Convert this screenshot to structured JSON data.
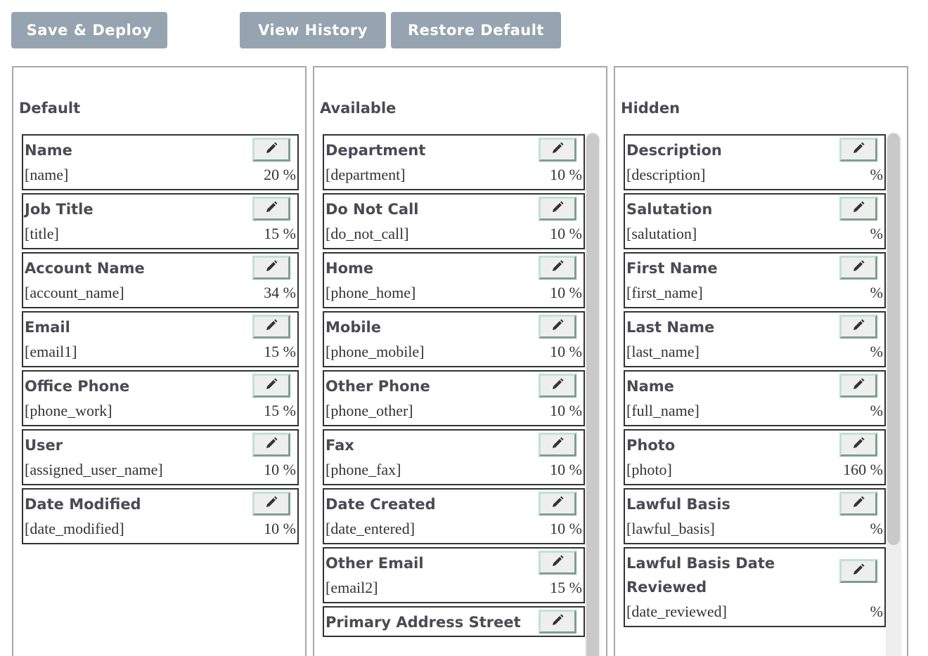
{
  "toolbar": {
    "save_deploy": "Save & Deploy",
    "view_history": "View History",
    "restore_default": "Restore Default"
  },
  "columns": [
    {
      "title": "Default",
      "fields": [
        {
          "label": "Name",
          "field": "[name]",
          "width": "20 %"
        },
        {
          "label": "Job Title",
          "field": "[title]",
          "width": "15 %"
        },
        {
          "label": "Account Name",
          "field": "[account_name]",
          "width": "34 %"
        },
        {
          "label": "Email",
          "field": "[email1]",
          "width": "15 %"
        },
        {
          "label": "Office Phone",
          "field": "[phone_work]",
          "width": "15 %"
        },
        {
          "label": "User",
          "field": "[assigned_user_name]",
          "width": "10 %"
        },
        {
          "label": "Date Modified",
          "field": "[date_modified]",
          "width": "10 %"
        }
      ]
    },
    {
      "title": "Available",
      "fields": [
        {
          "label": "Department",
          "field": "[department]",
          "width": "10 %"
        },
        {
          "label": "Do Not Call",
          "field": "[do_not_call]",
          "width": "10 %"
        },
        {
          "label": "Home",
          "field": "[phone_home]",
          "width": "10 %"
        },
        {
          "label": "Mobile",
          "field": "[phone_mobile]",
          "width": "10 %"
        },
        {
          "label": "Other Phone",
          "field": "[phone_other]",
          "width": "10 %"
        },
        {
          "label": "Fax",
          "field": "[phone_fax]",
          "width": "10 %"
        },
        {
          "label": "Date Created",
          "field": "[date_entered]",
          "width": "10 %"
        },
        {
          "label": "Other Email",
          "field": "[email2]",
          "width": "15 %"
        },
        {
          "label": "Primary Address Street",
          "field": "",
          "width": ""
        }
      ]
    },
    {
      "title": "Hidden",
      "fields": [
        {
          "label": "Description",
          "field": "[description]",
          "width": "%"
        },
        {
          "label": "Salutation",
          "field": "[salutation]",
          "width": "%"
        },
        {
          "label": "First Name",
          "field": "[first_name]",
          "width": "%"
        },
        {
          "label": "Last Name",
          "field": "[last_name]",
          "width": "%"
        },
        {
          "label": "Name",
          "field": "[full_name]",
          "width": "%"
        },
        {
          "label": "Photo",
          "field": "[photo]",
          "width": "160 %"
        },
        {
          "label": "Lawful Basis",
          "field": "[lawful_basis]",
          "width": "%"
        },
        {
          "label": "Lawful Basis Date Reviewed",
          "field": "[date_reviewed]",
          "width": "%"
        }
      ]
    }
  ],
  "icons": {
    "edit": "pencil-icon"
  }
}
